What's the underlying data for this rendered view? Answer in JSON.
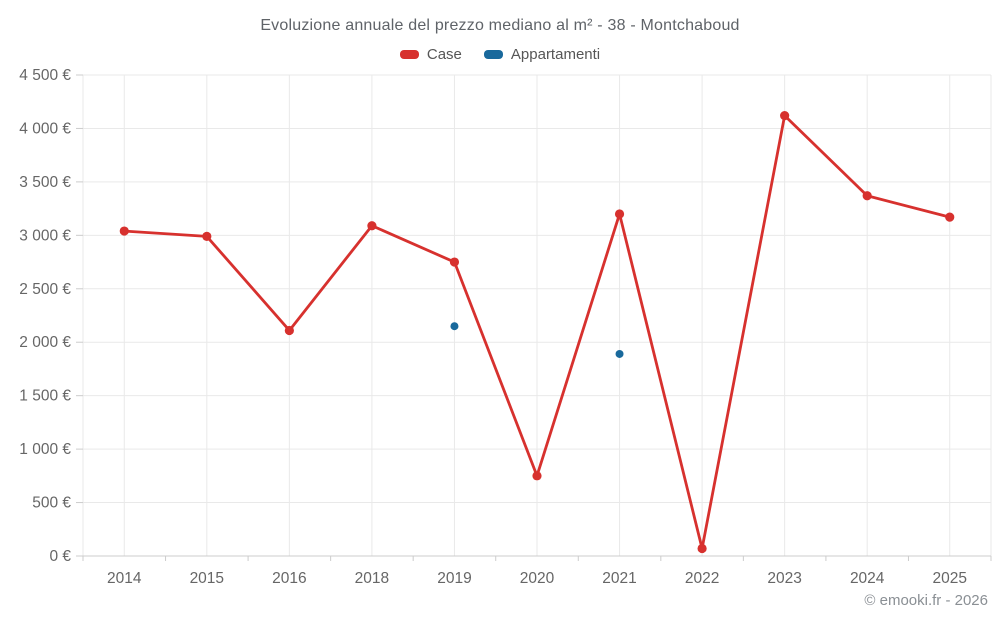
{
  "header": {
    "title": "Evoluzione annuale del prezzo mediano al m² - 38 - Montchaboud"
  },
  "legend": {
    "items": [
      {
        "label": "Case",
        "color": "#d7312e"
      },
      {
        "label": "Appartamenti",
        "color": "#19699c"
      }
    ]
  },
  "footer": {
    "credit": "© emooki.fr - 2026"
  },
  "chart_data": {
    "type": "line",
    "title": "Evoluzione annuale del prezzo mediano al m² - 38 - Montchaboud",
    "xlabel": "",
    "ylabel": "",
    "currency": "€",
    "categories": [
      "2014",
      "2015",
      "2016",
      "2018",
      "2019",
      "2020",
      "2021",
      "2022",
      "2023",
      "2024",
      "2025"
    ],
    "series": [
      {
        "name": "Case",
        "type": "line",
        "color": "#d7312e",
        "values": [
          3040,
          2990,
          2110,
          3090,
          2750,
          750,
          3200,
          70,
          4120,
          3370,
          3170
        ]
      },
      {
        "name": "Appartamenti",
        "type": "scatter",
        "color": "#19699c",
        "values": [
          null,
          null,
          null,
          null,
          2150,
          null,
          1890,
          null,
          null,
          null,
          null
        ]
      }
    ],
    "ylim": [
      0,
      4500
    ],
    "y_ticks": [
      0,
      500,
      1000,
      1500,
      2000,
      2500,
      3000,
      3500,
      4000,
      4500
    ],
    "y_tick_labels": [
      "0 €",
      "500 €",
      "1 000 €",
      "1 500 €",
      "2 000 €",
      "2 500 €",
      "3 000 €",
      "3 500 €",
      "4 000 €",
      "4 500 €"
    ],
    "grid": true,
    "legend_position": "top"
  }
}
